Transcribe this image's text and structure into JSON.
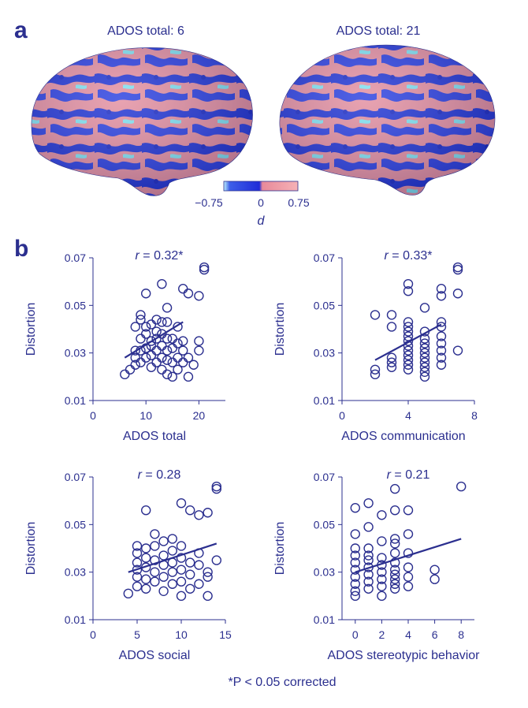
{
  "panels": {
    "a": "a",
    "b": "b"
  },
  "brains": [
    {
      "title": "ADOS total: 6"
    },
    {
      "title": "ADOS total: 21"
    }
  ],
  "colorbar": {
    "min_label": "−0.75",
    "mid_label": "0",
    "max_label": "0.75",
    "label": "d",
    "colors": [
      "#bff3ff",
      "#3d5ee8",
      "#1f2bd8",
      "#e88a9a",
      "#f6b2b6"
    ]
  },
  "colors": {
    "ink": "#2b2f8f",
    "brain_blue": "#2034d4",
    "brain_pink": "#e48fa0",
    "brain_cyan": "#7fe3f2"
  },
  "footnote": "*P < 0.05 corrected",
  "chart_data": [
    {
      "type": "scatter",
      "xlabel": "ADOS total",
      "ylabel": "Distortion",
      "xlim": [
        0,
        25
      ],
      "ylim": [
        0.01,
        0.07
      ],
      "xticks": [
        "0",
        "10",
        "20"
      ],
      "yticks": [
        "0.01",
        "0.03",
        "0.05",
        "0.07"
      ],
      "annotation": "r = 0.32*",
      "fit": {
        "x": [
          6,
          17
        ],
        "y": [
          0.028,
          0.043
        ]
      },
      "points": [
        {
          "x": 6,
          "y": 0.021
        },
        {
          "x": 7,
          "y": 0.023
        },
        {
          "x": 8,
          "y": 0.025
        },
        {
          "x": 8,
          "y": 0.028
        },
        {
          "x": 8,
          "y": 0.031
        },
        {
          "x": 8,
          "y": 0.041
        },
        {
          "x": 9,
          "y": 0.026
        },
        {
          "x": 9,
          "y": 0.031
        },
        {
          "x": 9,
          "y": 0.036
        },
        {
          "x": 9,
          "y": 0.044
        },
        {
          "x": 9,
          "y": 0.046
        },
        {
          "x": 10,
          "y": 0.028
        },
        {
          "x": 10,
          "y": 0.032
        },
        {
          "x": 10,
          "y": 0.038
        },
        {
          "x": 10,
          "y": 0.041
        },
        {
          "x": 10,
          "y": 0.055
        },
        {
          "x": 11,
          "y": 0.024
        },
        {
          "x": 11,
          "y": 0.029
        },
        {
          "x": 11,
          "y": 0.033
        },
        {
          "x": 11,
          "y": 0.035
        },
        {
          "x": 11,
          "y": 0.042
        },
        {
          "x": 12,
          "y": 0.026
        },
        {
          "x": 12,
          "y": 0.031
        },
        {
          "x": 12,
          "y": 0.036
        },
        {
          "x": 12,
          "y": 0.039
        },
        {
          "x": 12,
          "y": 0.044
        },
        {
          "x": 13,
          "y": 0.023
        },
        {
          "x": 13,
          "y": 0.028
        },
        {
          "x": 13,
          "y": 0.033
        },
        {
          "x": 13,
          "y": 0.038
        },
        {
          "x": 13,
          "y": 0.043
        },
        {
          "x": 13,
          "y": 0.059
        },
        {
          "x": 14,
          "y": 0.021
        },
        {
          "x": 14,
          "y": 0.027
        },
        {
          "x": 14,
          "y": 0.031
        },
        {
          "x": 14,
          "y": 0.036
        },
        {
          "x": 14,
          "y": 0.043
        },
        {
          "x": 14,
          "y": 0.049
        },
        {
          "x": 15,
          "y": 0.02
        },
        {
          "x": 15,
          "y": 0.026
        },
        {
          "x": 15,
          "y": 0.032
        },
        {
          "x": 15,
          "y": 0.036
        },
        {
          "x": 16,
          "y": 0.023
        },
        {
          "x": 16,
          "y": 0.028
        },
        {
          "x": 16,
          "y": 0.034
        },
        {
          "x": 16,
          "y": 0.041
        },
        {
          "x": 17,
          "y": 0.026
        },
        {
          "x": 17,
          "y": 0.031
        },
        {
          "x": 17,
          "y": 0.035
        },
        {
          "x": 17,
          "y": 0.057
        },
        {
          "x": 18,
          "y": 0.02
        },
        {
          "x": 18,
          "y": 0.028
        },
        {
          "x": 18,
          "y": 0.055
        },
        {
          "x": 19,
          "y": 0.025
        },
        {
          "x": 20,
          "y": 0.031
        },
        {
          "x": 20,
          "y": 0.035
        },
        {
          "x": 20,
          "y": 0.054
        },
        {
          "x": 21,
          "y": 0.065
        },
        {
          "x": 21,
          "y": 0.066
        }
      ]
    },
    {
      "type": "scatter",
      "xlabel": "ADOS communication",
      "ylabel": "Distortion",
      "xlim": [
        0,
        8
      ],
      "ylim": [
        0.01,
        0.07
      ],
      "xticks": [
        "0",
        "4",
        "8"
      ],
      "yticks": [
        "0.01",
        "0.03",
        "0.05",
        "0.07"
      ],
      "annotation": "r = 0.33*",
      "fit": {
        "x": [
          2,
          6
        ],
        "y": [
          0.027,
          0.042
        ]
      },
      "points": [
        {
          "x": 2,
          "y": 0.021
        },
        {
          "x": 2,
          "y": 0.023
        },
        {
          "x": 2,
          "y": 0.046
        },
        {
          "x": 3,
          "y": 0.024
        },
        {
          "x": 3,
          "y": 0.026
        },
        {
          "x": 3,
          "y": 0.028
        },
        {
          "x": 3,
          "y": 0.041
        },
        {
          "x": 3,
          "y": 0.046
        },
        {
          "x": 4,
          "y": 0.023
        },
        {
          "x": 4,
          "y": 0.025
        },
        {
          "x": 4,
          "y": 0.027
        },
        {
          "x": 4,
          "y": 0.029
        },
        {
          "x": 4,
          "y": 0.031
        },
        {
          "x": 4,
          "y": 0.033
        },
        {
          "x": 4,
          "y": 0.035
        },
        {
          "x": 4,
          "y": 0.037
        },
        {
          "x": 4,
          "y": 0.039
        },
        {
          "x": 4,
          "y": 0.041
        },
        {
          "x": 4,
          "y": 0.043
        },
        {
          "x": 4,
          "y": 0.056
        },
        {
          "x": 4,
          "y": 0.059
        },
        {
          "x": 5,
          "y": 0.02
        },
        {
          "x": 5,
          "y": 0.022
        },
        {
          "x": 5,
          "y": 0.024
        },
        {
          "x": 5,
          "y": 0.026
        },
        {
          "x": 5,
          "y": 0.028
        },
        {
          "x": 5,
          "y": 0.03
        },
        {
          "x": 5,
          "y": 0.032
        },
        {
          "x": 5,
          "y": 0.034
        },
        {
          "x": 5,
          "y": 0.036
        },
        {
          "x": 5,
          "y": 0.039
        },
        {
          "x": 5,
          "y": 0.049
        },
        {
          "x": 6,
          "y": 0.025
        },
        {
          "x": 6,
          "y": 0.028
        },
        {
          "x": 6,
          "y": 0.031
        },
        {
          "x": 6,
          "y": 0.034
        },
        {
          "x": 6,
          "y": 0.037
        },
        {
          "x": 6,
          "y": 0.041
        },
        {
          "x": 6,
          "y": 0.043
        },
        {
          "x": 6,
          "y": 0.054
        },
        {
          "x": 6,
          "y": 0.057
        },
        {
          "x": 7,
          "y": 0.031
        },
        {
          "x": 7,
          "y": 0.055
        },
        {
          "x": 7,
          "y": 0.065
        },
        {
          "x": 7,
          "y": 0.066
        }
      ]
    },
    {
      "type": "scatter",
      "xlabel": "ADOS social",
      "ylabel": "Distortion",
      "xlim": [
        0,
        15
      ],
      "ylim": [
        0.01,
        0.07
      ],
      "xticks": [
        "0",
        "5",
        "10",
        "15"
      ],
      "yticks": [
        "0.01",
        "0.03",
        "0.05",
        "0.07"
      ],
      "annotation": "r = 0.28",
      "fit": {
        "x": [
          4,
          14
        ],
        "y": [
          0.03,
          0.042
        ]
      },
      "points": [
        {
          "x": 4,
          "y": 0.021
        },
        {
          "x": 5,
          "y": 0.024
        },
        {
          "x": 5,
          "y": 0.028
        },
        {
          "x": 5,
          "y": 0.031
        },
        {
          "x": 5,
          "y": 0.034
        },
        {
          "x": 5,
          "y": 0.038
        },
        {
          "x": 5,
          "y": 0.041
        },
        {
          "x": 6,
          "y": 0.023
        },
        {
          "x": 6,
          "y": 0.027
        },
        {
          "x": 6,
          "y": 0.032
        },
        {
          "x": 6,
          "y": 0.036
        },
        {
          "x": 6,
          "y": 0.04
        },
        {
          "x": 6,
          "y": 0.056
        },
        {
          "x": 7,
          "y": 0.026
        },
        {
          "x": 7,
          "y": 0.03
        },
        {
          "x": 7,
          "y": 0.035
        },
        {
          "x": 7,
          "y": 0.041
        },
        {
          "x": 7,
          "y": 0.046
        },
        {
          "x": 8,
          "y": 0.022
        },
        {
          "x": 8,
          "y": 0.028
        },
        {
          "x": 8,
          "y": 0.033
        },
        {
          "x": 8,
          "y": 0.037
        },
        {
          "x": 8,
          "y": 0.043
        },
        {
          "x": 9,
          "y": 0.025
        },
        {
          "x": 9,
          "y": 0.03
        },
        {
          "x": 9,
          "y": 0.034
        },
        {
          "x": 9,
          "y": 0.039
        },
        {
          "x": 9,
          "y": 0.044
        },
        {
          "x": 10,
          "y": 0.02
        },
        {
          "x": 10,
          "y": 0.026
        },
        {
          "x": 10,
          "y": 0.031
        },
        {
          "x": 10,
          "y": 0.036
        },
        {
          "x": 10,
          "y": 0.041
        },
        {
          "x": 10,
          "y": 0.059
        },
        {
          "x": 11,
          "y": 0.023
        },
        {
          "x": 11,
          "y": 0.029
        },
        {
          "x": 11,
          "y": 0.034
        },
        {
          "x": 11,
          "y": 0.056
        },
        {
          "x": 12,
          "y": 0.025
        },
        {
          "x": 12,
          "y": 0.033
        },
        {
          "x": 12,
          "y": 0.038
        },
        {
          "x": 12,
          "y": 0.054
        },
        {
          "x": 13,
          "y": 0.02
        },
        {
          "x": 13,
          "y": 0.028
        },
        {
          "x": 13,
          "y": 0.03
        },
        {
          "x": 13,
          "y": 0.055
        },
        {
          "x": 14,
          "y": 0.035
        },
        {
          "x": 14,
          "y": 0.065
        },
        {
          "x": 14,
          "y": 0.066
        }
      ]
    },
    {
      "type": "scatter",
      "xlabel": "ADOS stereotypic behavior",
      "ylabel": "Distortion",
      "xlim": [
        -1,
        9
      ],
      "ylim": [
        0.01,
        0.07
      ],
      "xticks": [
        "0",
        "2",
        "4",
        "6",
        "8"
      ],
      "yticks": [
        "0.01",
        "0.03",
        "0.05",
        "0.07"
      ],
      "annotation": "r = 0.21",
      "fit": {
        "x": [
          0,
          8
        ],
        "y": [
          0.03,
          0.044
        ]
      },
      "points": [
        {
          "x": 0,
          "y": 0.02
        },
        {
          "x": 0,
          "y": 0.022
        },
        {
          "x": 0,
          "y": 0.025
        },
        {
          "x": 0,
          "y": 0.028
        },
        {
          "x": 0,
          "y": 0.031
        },
        {
          "x": 0,
          "y": 0.034
        },
        {
          "x": 0,
          "y": 0.037
        },
        {
          "x": 0,
          "y": 0.04
        },
        {
          "x": 0,
          "y": 0.046
        },
        {
          "x": 0,
          "y": 0.057
        },
        {
          "x": 1,
          "y": 0.023
        },
        {
          "x": 1,
          "y": 0.026
        },
        {
          "x": 1,
          "y": 0.029
        },
        {
          "x": 1,
          "y": 0.032
        },
        {
          "x": 1,
          "y": 0.035
        },
        {
          "x": 1,
          "y": 0.037
        },
        {
          "x": 1,
          "y": 0.04
        },
        {
          "x": 1,
          "y": 0.049
        },
        {
          "x": 1,
          "y": 0.059
        },
        {
          "x": 2,
          "y": 0.02
        },
        {
          "x": 2,
          "y": 0.024
        },
        {
          "x": 2,
          "y": 0.027
        },
        {
          "x": 2,
          "y": 0.03
        },
        {
          "x": 2,
          "y": 0.033
        },
        {
          "x": 2,
          "y": 0.036
        },
        {
          "x": 2,
          "y": 0.043
        },
        {
          "x": 2,
          "y": 0.054
        },
        {
          "x": 3,
          "y": 0.023
        },
        {
          "x": 3,
          "y": 0.025
        },
        {
          "x": 3,
          "y": 0.027
        },
        {
          "x": 3,
          "y": 0.029
        },
        {
          "x": 3,
          "y": 0.031
        },
        {
          "x": 3,
          "y": 0.034
        },
        {
          "x": 3,
          "y": 0.038
        },
        {
          "x": 3,
          "y": 0.042
        },
        {
          "x": 3,
          "y": 0.044
        },
        {
          "x": 3,
          "y": 0.056
        },
        {
          "x": 3,
          "y": 0.065
        },
        {
          "x": 4,
          "y": 0.024
        },
        {
          "x": 4,
          "y": 0.028
        },
        {
          "x": 4,
          "y": 0.032
        },
        {
          "x": 4,
          "y": 0.038
        },
        {
          "x": 4,
          "y": 0.046
        },
        {
          "x": 4,
          "y": 0.056
        },
        {
          "x": 6,
          "y": 0.027
        },
        {
          "x": 6,
          "y": 0.031
        },
        {
          "x": 8,
          "y": 0.066
        }
      ]
    }
  ]
}
